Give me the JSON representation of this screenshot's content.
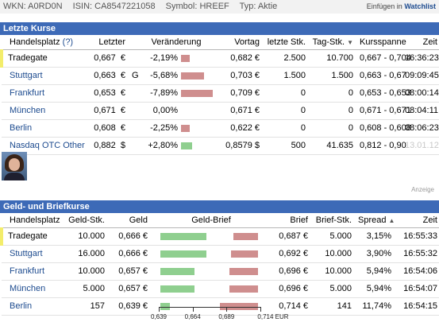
{
  "header": {
    "wkn": "WKN: A0RD0N",
    "isin": "ISIN: CA8547221058",
    "symbol": "Symbol: HREEF",
    "typ": "Typ: Aktie",
    "watch_prefix": "Einfügen in ",
    "watch_link": "Watchlist"
  },
  "letzte_kurse": {
    "title": "Letzte Kurse",
    "columns": {
      "handelsplatz": "Handelsplatz",
      "help": "(?)",
      "letzter": "Letzter",
      "veraenderung": "Veränderung",
      "vortag": "Vortag",
      "letzte_stk": "letzte Stk.",
      "tag_stk": "Tag-Stk.",
      "kursspanne": "Kursspanne",
      "zeit": "Zeit"
    },
    "rows": [
      {
        "place": "Tradegate",
        "last": "0,667",
        "cur": "€",
        "flag": "",
        "change": "-2,19%",
        "change_pct": -2.19,
        "prev": "0,682 €",
        "last_qty": "2.500",
        "day_qty": "10.700",
        "range": "0,667 - 0,704",
        "time": "16:36:23"
      },
      {
        "place": "Stuttgart",
        "last": "0,663",
        "cur": "€",
        "flag": "G",
        "change": "-5,68%",
        "change_pct": -5.68,
        "prev": "0,703 €",
        "last_qty": "1.500",
        "day_qty": "1.500",
        "range": "0,663 - 0,67",
        "time": "09:09:45"
      },
      {
        "place": "Frankfurt",
        "last": "0,653",
        "cur": "€",
        "flag": "",
        "change": "-7,89%",
        "change_pct": -7.89,
        "prev": "0,709 €",
        "last_qty": "0",
        "day_qty": "0",
        "range": "0,653 - 0,653",
        "time": "08:00:14"
      },
      {
        "place": "München",
        "last": "0,671",
        "cur": "€",
        "flag": "",
        "change": "0,00%",
        "change_pct": 0,
        "prev": "0,671 €",
        "last_qty": "0",
        "day_qty": "0",
        "range": "0,671 - 0,671",
        "time": "08:04:11"
      },
      {
        "place": "Berlin",
        "last": "0,608",
        "cur": "€",
        "flag": "",
        "change": "-2,25%",
        "change_pct": -2.25,
        "prev": "0,622 €",
        "last_qty": "0",
        "day_qty": "0",
        "range": "0,608 - 0,608",
        "time": "08:06:23"
      },
      {
        "place": "Nasdaq OTC Other",
        "last": "0,882",
        "cur": "$",
        "flag": "",
        "change": "+2,80%",
        "change_pct": 2.8,
        "prev": "0,8579 $",
        "last_qty": "500",
        "day_qty": "41.635",
        "range": "0,812 - 0,90",
        "time": "13.01.12"
      }
    ]
  },
  "ad": {
    "label": "Anzeige"
  },
  "geld_brief": {
    "title": "Geld- und Briefkurse",
    "columns": {
      "handelsplatz": "Handelsplatz",
      "geld_stk": "Geld-Stk.",
      "geld": "Geld",
      "geld_brief": "Geld-Brief",
      "brief": "Brief",
      "brief_stk": "Brief-Stk.",
      "spread": "Spread",
      "zeit": "Zeit"
    },
    "rows": [
      {
        "place": "Tradegate",
        "bid_qty": "10.000",
        "bid": "0,666 €",
        "bid_val": 0.666,
        "ask": "0,687 €",
        "ask_val": 0.687,
        "ask_qty": "5.000",
        "spread": "3,15%",
        "time": "16:55:33"
      },
      {
        "place": "Stuttgart",
        "bid_qty": "16.000",
        "bid": "0,666 €",
        "bid_val": 0.666,
        "ask": "0,692 €",
        "ask_val": 0.692,
        "ask_qty": "10.000",
        "spread": "3,90%",
        "time": "16:55:32"
      },
      {
        "place": "Frankfurt",
        "bid_qty": "10.000",
        "bid": "0,657 €",
        "bid_val": 0.657,
        "ask": "0,696 €",
        "ask_val": 0.696,
        "ask_qty": "10.000",
        "spread": "5,94%",
        "time": "16:54:06"
      },
      {
        "place": "München",
        "bid_qty": "5.000",
        "bid": "0,657 €",
        "bid_val": 0.657,
        "ask": "0,696 €",
        "ask_val": 0.696,
        "ask_qty": "5.000",
        "spread": "5,94%",
        "time": "16:54:07"
      },
      {
        "place": "Berlin",
        "bid_qty": "157",
        "bid": "0,639 €",
        "bid_val": 0.639,
        "ask": "0,714 €",
        "ask_val": 0.714,
        "ask_qty": "141",
        "spread": "11,74%",
        "time": "16:54:15"
      }
    ],
    "axis": {
      "min": 0.639,
      "max": 0.714,
      "ticks": [
        {
          "value": 0.639,
          "label": "0,639"
        },
        {
          "value": 0.664,
          "label": "0,664"
        },
        {
          "value": 0.689,
          "label": "0,689"
        },
        {
          "value": 0.714,
          "label": "0,714 EUR"
        }
      ]
    }
  },
  "colors": {
    "header_blue": "#3d6ab7",
    "link": "#1d4b8f",
    "bar_red": "#cf8e8e",
    "bar_green": "#8fcf8f",
    "highlight_yellow": "#f3ed6b"
  }
}
